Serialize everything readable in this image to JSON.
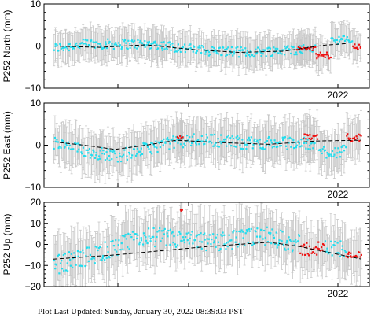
{
  "footer": {
    "label": "Plot Last Updated:",
    "timestamp": "Sunday, January 30, 2022 08:39:03 PST"
  },
  "colors": {
    "points": "#22ddee",
    "recent_points": "#ee1111",
    "error_bars": "#c8c8c8",
    "model_line": "#000000"
  },
  "chart_data": [
    {
      "type": "scatter",
      "ylabel": "P252 North (mm)",
      "ylim": [
        -10,
        10
      ],
      "yticks": [
        "10",
        "0",
        "−10"
      ],
      "xtick_label": "2022",
      "n_points": 330,
      "error_range": [
        2.5,
        4.5
      ],
      "trend": [
        [
          0.0,
          0.0
        ],
        [
          0.15,
          -0.3
        ],
        [
          0.3,
          0.3
        ],
        [
          0.45,
          -0.8
        ],
        [
          0.6,
          -1.5
        ],
        [
          0.75,
          -1.2
        ],
        [
          0.88,
          0.2
        ],
        [
          0.95,
          0.6
        ]
      ],
      "series": [
        {
          "color": "cyan",
          "style": "points",
          "x_range": [
            0.0,
            0.85
          ],
          "level": [
            [
              0.0,
              -0.5
            ],
            [
              0.1,
              0.5
            ],
            [
              0.3,
              0.5
            ],
            [
              0.45,
              -1.0
            ],
            [
              0.6,
              -1.5
            ],
            [
              0.8,
              -0.5
            ]
          ],
          "spread": 1.2
        },
        {
          "color": "red",
          "style": "points",
          "x_range": [
            0.79,
            0.85
          ],
          "level": [
            [
              0.0,
              -0.6
            ]
          ],
          "spread": 0.4
        },
        {
          "color": "red",
          "style": "points",
          "x_range": [
            0.85,
            0.9
          ],
          "level": [
            [
              0.0,
              -2.2
            ]
          ],
          "spread": 0.8
        },
        {
          "color": "cyan",
          "style": "points",
          "x_range": [
            0.9,
            0.97
          ],
          "level": [
            [
              0.0,
              1.5
            ]
          ],
          "spread": 1.0
        },
        {
          "color": "red",
          "style": "points",
          "x_range": [
            0.97,
            1.0
          ],
          "level": [
            [
              0.0,
              -0.3
            ]
          ],
          "spread": 0.9
        }
      ]
    },
    {
      "type": "scatter",
      "ylabel": "P252 East (mm)",
      "ylim": [
        -10,
        10
      ],
      "yticks": [
        "10",
        "0",
        "−10"
      ],
      "xtick_label": "2022",
      "n_points": 330,
      "error_range": [
        3.0,
        6.0
      ],
      "trend": [
        [
          0.0,
          0.8
        ],
        [
          0.1,
          0.0
        ],
        [
          0.2,
          -1.0
        ],
        [
          0.3,
          0.0
        ],
        [
          0.4,
          1.2
        ],
        [
          0.55,
          0.6
        ],
        [
          0.7,
          0.2
        ],
        [
          0.85,
          1.0
        ],
        [
          1.0,
          1.2
        ]
      ],
      "series": [
        {
          "color": "cyan",
          "style": "points",
          "x_range": [
            0.0,
            0.85
          ],
          "level": [
            [
              0.0,
              0.5
            ],
            [
              0.1,
              -1.5
            ],
            [
              0.2,
              -2.5
            ],
            [
              0.35,
              0.5
            ],
            [
              0.45,
              1.5
            ],
            [
              0.6,
              0.5
            ],
            [
              0.8,
              0.5
            ]
          ],
          "spread": 1.5
        },
        {
          "color": "red",
          "style": "points",
          "x_range": [
            0.4,
            0.42
          ],
          "level": [
            [
              0.0,
              1.8
            ]
          ],
          "spread": 0.4
        },
        {
          "color": "red",
          "style": "points",
          "x_range": [
            0.81,
            0.86
          ],
          "level": [
            [
              0.0,
              2.0
            ]
          ],
          "spread": 0.7
        },
        {
          "color": "cyan",
          "style": "points",
          "x_range": [
            0.86,
            0.95
          ],
          "level": [
            [
              0.0,
              -1.5
            ]
          ],
          "spread": 1.5
        },
        {
          "color": "red",
          "style": "points",
          "x_range": [
            0.95,
            1.0
          ],
          "level": [
            [
              0.0,
              1.8
            ]
          ],
          "spread": 0.9
        }
      ]
    },
    {
      "type": "scatter",
      "ylabel": "P252 Up (mm)",
      "ylim": [
        -20,
        20
      ],
      "yticks": [
        "20",
        "10",
        "0",
        "−10",
        "−20"
      ],
      "xtick_label": "2022",
      "n_points": 330,
      "error_range": [
        6.0,
        14.0
      ],
      "trend": [
        [
          0.0,
          -7.0
        ],
        [
          0.2,
          -5.0
        ],
        [
          0.35,
          -3.0
        ],
        [
          0.5,
          -1.0
        ],
        [
          0.7,
          1.0
        ],
        [
          0.8,
          -1.0
        ],
        [
          0.9,
          -4.0
        ],
        [
          1.0,
          -7.0
        ]
      ],
      "series": [
        {
          "color": "cyan",
          "style": "points",
          "x_range": [
            0.0,
            0.8
          ],
          "level": [
            [
              0.0,
              -10.0
            ],
            [
              0.15,
              -4.0
            ],
            [
              0.3,
              4.0
            ],
            [
              0.5,
              1.0
            ],
            [
              0.7,
              4.0
            ],
            [
              0.8,
              0.0
            ]
          ],
          "spread": 4.5
        },
        {
          "color": "red",
          "style": "points",
          "x_range": [
            0.41,
            0.42
          ],
          "level": [
            [
              0.0,
              16.0
            ]
          ],
          "spread": 0.6
        },
        {
          "color": "red",
          "style": "points",
          "x_range": [
            0.8,
            0.88
          ],
          "level": [
            [
              0.0,
              -2.0
            ]
          ],
          "spread": 3.5
        },
        {
          "color": "cyan",
          "style": "points",
          "x_range": [
            0.88,
            0.95
          ],
          "level": [
            [
              0.0,
              -2.0
            ]
          ],
          "spread": 4.0
        },
        {
          "color": "red",
          "style": "points",
          "x_range": [
            0.95,
            1.0
          ],
          "level": [
            [
              0.0,
              -5.0
            ]
          ],
          "spread": 1.5
        }
      ]
    }
  ]
}
